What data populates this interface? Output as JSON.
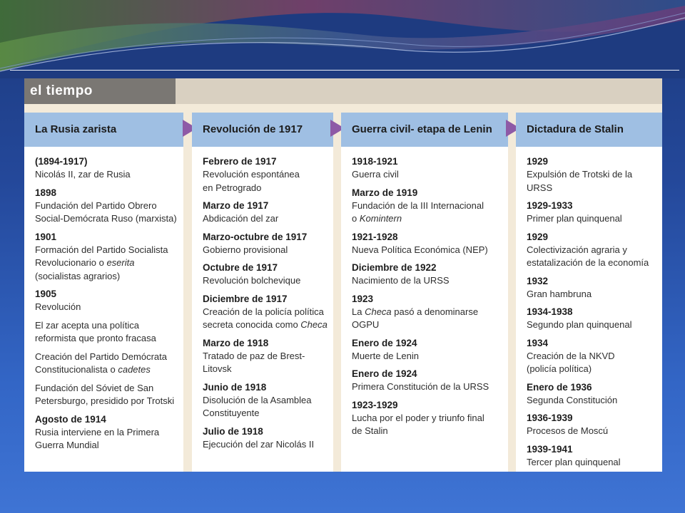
{
  "title": "el tiempo",
  "columns": [
    {
      "heading": "La Rusia zarista",
      "entries": [
        {
          "year": "(1894-1917)",
          "parts": [
            {
              "t": "Nicolás II, zar de Rusia"
            }
          ]
        },
        {
          "year": "1898",
          "parts": [
            {
              "t": "Fundación del Partido Obrero\nSocial-Demócrata Ruso (marxista)"
            }
          ]
        },
        {
          "year": "1901",
          "parts": [
            {
              "t": "Formación del Partido Socialista\nRevolucionario  o "
            },
            {
              "t": "eserita",
              "i": true
            },
            {
              "t": "\n(socialistas agrarios)"
            }
          ]
        },
        {
          "year": "1905",
          "parts": [
            {
              "t": "Revolución"
            }
          ]
        },
        {
          "year": "",
          "parts": [
            {
              "t": "El zar acepta una política\nreformista que pronto fracasa"
            }
          ]
        },
        {
          "year": "",
          "parts": [
            {
              "t": "Creación del Partido Demócrata\nConstitucionalista  o "
            },
            {
              "t": "cadetes",
              "i": true
            }
          ]
        },
        {
          "year": "",
          "parts": [
            {
              "t": "Fundación del Sóviet de San\nPetersburgo, presidido por Trotski"
            }
          ]
        },
        {
          "year": "Agosto de 1914",
          "parts": [
            {
              "t": "Rusia interviene en la Primera\nGuerra Mundial"
            }
          ]
        }
      ]
    },
    {
      "heading": "Revolución de 1917",
      "entries": [
        {
          "year": "Febrero de 1917",
          "parts": [
            {
              "t": "Revolución espontánea\nen Petrogrado"
            }
          ]
        },
        {
          "year": "Marzo de 1917",
          "parts": [
            {
              "t": "Abdicación del zar"
            }
          ]
        },
        {
          "year": "Marzo-octubre de 1917",
          "parts": [
            {
              "t": "Gobierno provisional"
            }
          ]
        },
        {
          "year": "Octubre de 1917",
          "parts": [
            {
              "t": "Revolución bolchevique"
            }
          ]
        },
        {
          "year": "Diciembre de 1917",
          "parts": [
            {
              "t": "Creación de la policía política\nsecreta conocida como "
            },
            {
              "t": "Checa",
              "i": true
            }
          ]
        },
        {
          "year": "Marzo de 1918",
          "parts": [
            {
              "t": "Tratado de paz de Brest-\nLitovsk"
            }
          ]
        },
        {
          "year": "Junio de 1918",
          "parts": [
            {
              "t": "Disolución de la Asamblea\nConstituyente"
            }
          ]
        },
        {
          "year": "Julio de 1918",
          "parts": [
            {
              "t": "Ejecución del zar Nicolás II"
            }
          ]
        }
      ]
    },
    {
      "heading": "Guerra civil- etapa de Lenin",
      "entries": [
        {
          "year": "1918-1921",
          "parts": [
            {
              "t": "Guerra civil"
            }
          ]
        },
        {
          "year": "Marzo de 1919",
          "parts": [
            {
              "t": "Fundación de la III Internacional\no "
            },
            {
              "t": "Komintern",
              "i": true
            }
          ]
        },
        {
          "year": "1921-1928",
          "parts": [
            {
              "t": "Nueva Política Económica (NEP)"
            }
          ]
        },
        {
          "year": "Diciembre de 1922",
          "parts": [
            {
              "t": "Nacimiento de la URSS"
            }
          ]
        },
        {
          "year": "1923",
          "parts": [
            {
              "t": "La "
            },
            {
              "t": "Checa",
              "i": true
            },
            {
              "t": " pasó a denominarse\nOGPU"
            }
          ]
        },
        {
          "year": "Enero de 1924",
          "parts": [
            {
              "t": "Muerte de Lenin"
            }
          ]
        },
        {
          "year": "Enero de 1924",
          "parts": [
            {
              "t": "Primera Constitución de la URSS"
            }
          ]
        },
        {
          "year": "1923-1929",
          "parts": [
            {
              "t": "Lucha por el poder y triunfo final\nde Stalin"
            }
          ]
        }
      ]
    },
    {
      "heading": "Dictadura de Stalin",
      "entries": [
        {
          "year": "1929",
          "parts": [
            {
              "t": "Expulsión de Trotski de la URSS"
            }
          ]
        },
        {
          "year": "1929-1933",
          "parts": [
            {
              "t": "Primer plan quinquenal"
            }
          ]
        },
        {
          "year": "1929",
          "parts": [
            {
              "t": "Colectivización agraria y\nestatalización de la economía"
            }
          ]
        },
        {
          "year": "1932",
          "parts": [
            {
              "t": "Gran hambruna"
            }
          ]
        },
        {
          "year": "1934-1938",
          "parts": [
            {
              "t": "Segundo plan quinquenal"
            }
          ]
        },
        {
          "year": "1934",
          "parts": [
            {
              "t": "Creación de la  NKVD\n(policía política)"
            }
          ]
        },
        {
          "year": "Enero de 1936",
          "parts": [
            {
              "t": "Segunda Constitución"
            }
          ]
        },
        {
          "year": "1936-1939",
          "parts": [
            {
              "t": "Procesos de Moscú"
            }
          ]
        },
        {
          "year": "1939-1941",
          "parts": [
            {
              "t": "Tercer plan quinquenal"
            }
          ]
        }
      ]
    }
  ],
  "colors": {
    "accent": "#8e5aa6",
    "column_header": "#9fbfe3",
    "title_tab": "#7a7773",
    "panel": "#f3ead9"
  }
}
